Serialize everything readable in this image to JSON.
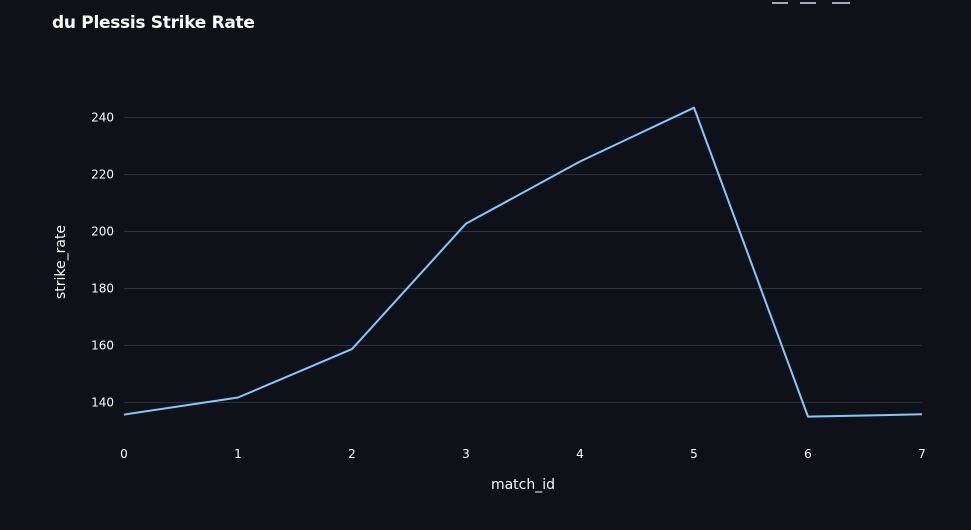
{
  "chart_data": {
    "type": "line",
    "title": "du Plessis Strike Rate",
    "xlabel": "match_id",
    "ylabel": "strike_rate",
    "x": [
      0,
      1,
      2,
      3,
      4,
      5,
      6,
      7
    ],
    "series": [
      {
        "values": [
          135.7,
          141.7,
          158.7,
          202.8,
          224.6,
          243.5,
          135.0,
          135.8
        ]
      }
    ],
    "xlim": [
      0,
      7
    ],
    "ylim": [
      131,
      249
    ],
    "xticks": [
      "0",
      "1",
      "2",
      "3",
      "4",
      "5",
      "6",
      "7"
    ],
    "yticks": [
      "140",
      "160",
      "180",
      "200",
      "220",
      "240"
    ],
    "grid": "horizontal",
    "line_color": "#83c9ff",
    "grid_color": "#31333f",
    "background": "#0e1117",
    "text_color": "#fafafa"
  }
}
